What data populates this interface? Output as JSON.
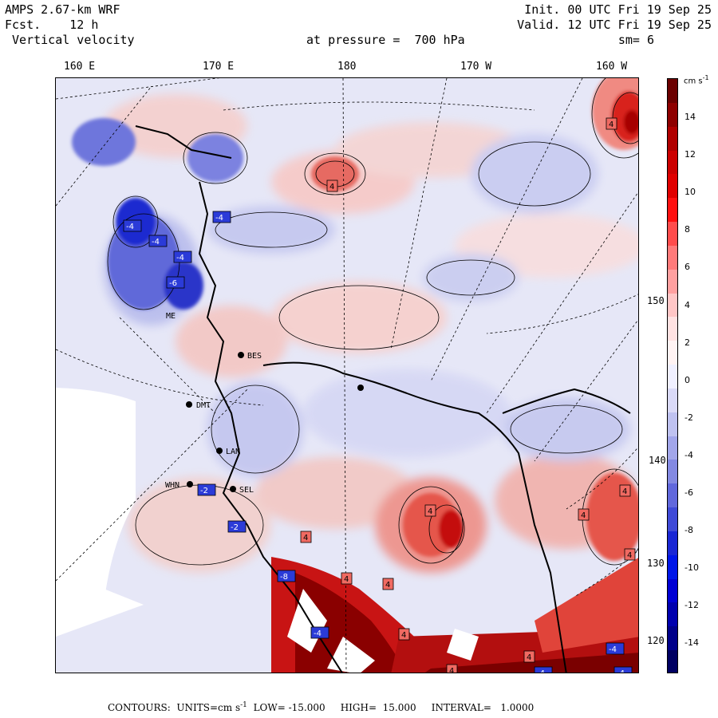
{
  "header": {
    "model": "AMPS 2.67-km WRF",
    "forecast_prefix": "Fcst.",
    "forecast_hours": "12 h",
    "field": "Vertical velocity",
    "init": "Init. 00 UTC Fri 19 Sep 25",
    "valid": "Valid. 12 UTC Fri 19 Sep 25",
    "pressure_label": "at pressure =  700 hPa",
    "smoothing": "sm= 6"
  },
  "map": {
    "longitude_labels": [
      "160 E",
      "170 E",
      "180",
      "170 W",
      "160 W"
    ],
    "latitude_labels": [
      "150 W",
      "140 W",
      "130 W",
      "120 W"
    ],
    "stations": [
      {
        "code": "BES"
      },
      {
        "code": "DMT"
      },
      {
        "code": "LAN"
      },
      {
        "code": "WHN"
      },
      {
        "code": "SEL"
      },
      {
        "code": "ME"
      }
    ],
    "contour_box_labels": [
      "4",
      "4",
      "4",
      "4",
      "4",
      "4",
      "4",
      "4",
      "4",
      "4",
      "4",
      "4",
      "-4",
      "-4",
      "-4",
      "-4",
      "-6",
      "-2",
      "-2",
      "-8",
      "-4",
      "-4",
      "-4",
      "-4"
    ],
    "colors": {
      "positive": "#e8483c",
      "negative": "#3f4fd8",
      "background": "#eaeaf7",
      "land_mask": "#ffffff"
    }
  },
  "colorbar": {
    "units": "cm s-1",
    "ticks": [
      "14",
      "12",
      "10",
      "8",
      "6",
      "4",
      "2",
      "0",
      "-2",
      "-4",
      "-6",
      "-8",
      "-10",
      "-12",
      "-14"
    ],
    "colors": [
      "#6b0000",
      "#8e0000",
      "#b00000",
      "#cc0000",
      "#e00000",
      "#ff1010",
      "#ff4c4c",
      "#ff7a7a",
      "#ffa0a0",
      "#ffc6c6",
      "#ffe2e2",
      "#fff3f3",
      "#f0f0ff",
      "#dadaf7",
      "#bfc2f0",
      "#a2a6ea",
      "#8389e2",
      "#6168dc",
      "#3f4ad7",
      "#1a27d4",
      "#0016e8",
      "#0000d4",
      "#0000ae",
      "#00008a",
      "#000062"
    ]
  },
  "footer": {
    "contours_label": "CONTOURS:",
    "units_text": "UNITS=cm s",
    "units_exponent": "-1",
    "low_text": "LOW= -15.000",
    "high_text": "HIGH=  15.000",
    "interval_text": "INTERVAL=   1.0000"
  }
}
